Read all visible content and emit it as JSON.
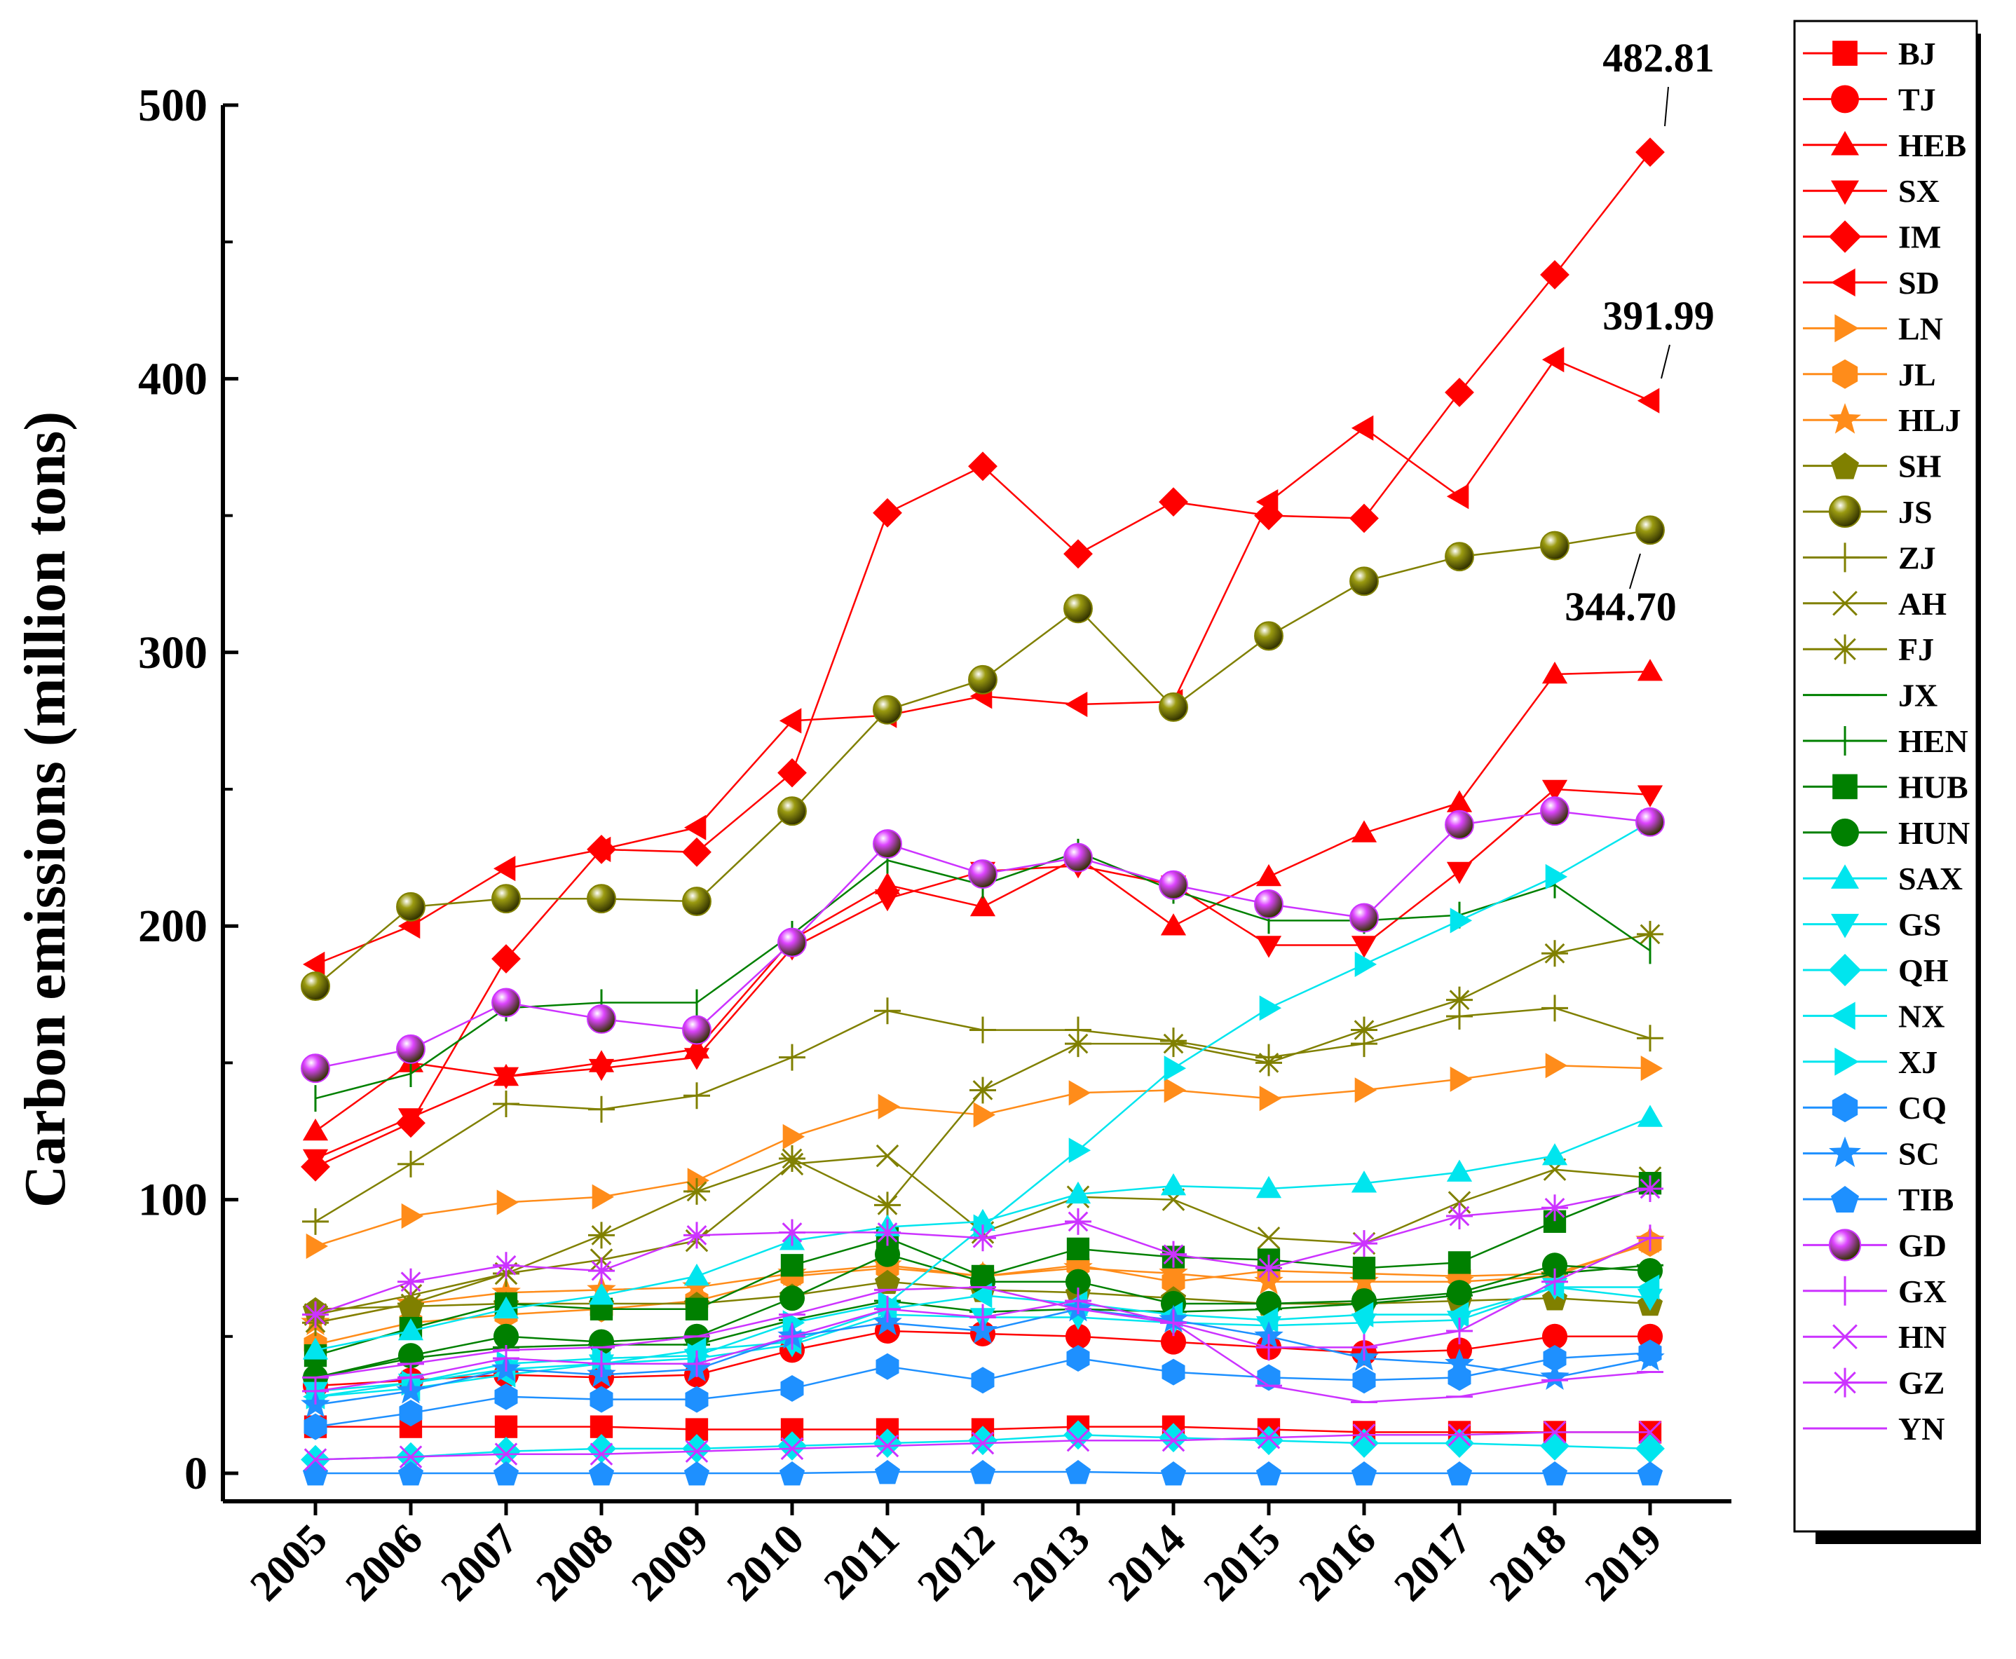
{
  "chart_data": {
    "type": "line",
    "title": "",
    "xlabel": "",
    "ylabel": "Carbon emissions (million tons)",
    "ylim": [
      0,
      500
    ],
    "yticks": [
      0,
      100,
      200,
      300,
      400,
      500
    ],
    "x": [
      "2005",
      "2006",
      "2007",
      "2008",
      "2009",
      "2010",
      "2011",
      "2012",
      "2013",
      "2014",
      "2015",
      "2016",
      "2017",
      "2018",
      "2019"
    ],
    "legend_position": "right",
    "annotations": [
      {
        "text": "482.81",
        "series": "IM",
        "x": "2019",
        "y": 482.81
      },
      {
        "text": "391.99",
        "series": "SD",
        "x": "2019",
        "y": 391.99
      },
      {
        "text": "344.70",
        "series": "JS",
        "x": "2019",
        "y": 344.7
      }
    ],
    "series": [
      {
        "name": "BJ",
        "color": "#ff0000",
        "marker": "square",
        "values": [
          17,
          17,
          17,
          17,
          16,
          16,
          16,
          16,
          17,
          17,
          16,
          15,
          15,
          15,
          15
        ]
      },
      {
        "name": "TJ",
        "color": "#ff0000",
        "marker": "circle",
        "values": [
          32,
          34,
          36,
          35,
          36,
          45,
          52,
          51,
          50,
          48,
          46,
          44,
          45,
          50,
          50
        ]
      },
      {
        "name": "HEB",
        "color": "#ff0000",
        "marker": "triangle-up",
        "values": [
          125,
          150,
          145,
          150,
          155,
          195,
          215,
          207,
          225,
          200,
          218,
          234,
          245,
          292,
          293
        ]
      },
      {
        "name": "SX",
        "color": "#ff0000",
        "marker": "triangle-down",
        "values": [
          115,
          130,
          145,
          148,
          152,
          192,
          210,
          220,
          222,
          215,
          193,
          193,
          220,
          250,
          248
        ]
      },
      {
        "name": "IM",
        "color": "#ff0000",
        "marker": "diamond",
        "values": [
          112,
          128,
          188,
          228,
          227,
          256,
          351,
          368,
          336,
          355,
          350,
          349,
          395,
          438,
          482.81
        ]
      },
      {
        "name": "SD",
        "color": "#ff0000",
        "marker": "triangle-left",
        "values": [
          186,
          200,
          221,
          228,
          236,
          275,
          277,
          284,
          281,
          282,
          355,
          382,
          357,
          407,
          391.99
        ]
      },
      {
        "name": "LN",
        "color": "#ff8c1a",
        "marker": "triangle-right",
        "values": [
          83,
          94,
          99,
          101,
          107,
          123,
          134,
          131,
          139,
          140,
          137,
          140,
          144,
          149,
          148
        ]
      },
      {
        "name": "JL",
        "color": "#ff8c1a",
        "marker": "hexagon",
        "values": [
          47,
          55,
          58,
          60,
          63,
          72,
          75,
          72,
          76,
          70,
          74,
          73,
          72,
          73,
          84
        ]
      },
      {
        "name": "HLJ",
        "color": "#ff8c1a",
        "marker": "star",
        "values": [
          55,
          62,
          66,
          67,
          68,
          73,
          76,
          72,
          75,
          73,
          70,
          70,
          70,
          72,
          85
        ]
      },
      {
        "name": "SH",
        "color": "#808000",
        "marker": "pentagon",
        "values": [
          60,
          61,
          62,
          62,
          62,
          65,
          70,
          67,
          66,
          64,
          62,
          62,
          63,
          64,
          62
        ]
      },
      {
        "name": "JS",
        "color": "#808000",
        "marker": "sphere",
        "values": [
          178,
          207,
          210,
          210,
          209,
          242,
          279,
          290,
          316,
          280,
          306,
          326,
          335,
          339,
          344.7
        ]
      },
      {
        "name": "ZJ",
        "color": "#808000",
        "marker": "plus",
        "values": [
          92,
          113,
          135,
          133,
          138,
          152,
          169,
          162,
          162,
          158,
          152,
          157,
          167,
          170,
          159
        ]
      },
      {
        "name": "AH",
        "color": "#808000",
        "marker": "x",
        "values": [
          58,
          65,
          73,
          78,
          85,
          113,
          116,
          88,
          101,
          100,
          86,
          84,
          99,
          111,
          108
        ]
      },
      {
        "name": "FJ",
        "color": "#808000",
        "marker": "asterisk",
        "values": [
          55,
          62,
          73,
          87,
          103,
          115,
          98,
          140,
          157,
          157,
          150,
          162,
          173,
          190,
          197
        ]
      },
      {
        "name": "JX",
        "color": "#008000",
        "marker": "hline",
        "values": [
          35,
          42,
          46,
          47,
          47,
          56,
          63,
          59,
          60,
          59,
          60,
          62,
          65,
          73,
          76
        ]
      },
      {
        "name": "HEN",
        "color": "#008000",
        "marker": "vline",
        "values": [
          137,
          146,
          170,
          172,
          172,
          197,
          224,
          215,
          227,
          213,
          202,
          202,
          204,
          215,
          191
        ]
      },
      {
        "name": "HUB",
        "color": "#008000",
        "marker": "square",
        "values": [
          43,
          53,
          62,
          60,
          60,
          76,
          86,
          72,
          82,
          79,
          78,
          75,
          77,
          92,
          106
        ]
      },
      {
        "name": "HUN",
        "color": "#008000",
        "marker": "circle",
        "values": [
          35,
          43,
          50,
          48,
          50,
          64,
          80,
          70,
          70,
          62,
          62,
          63,
          66,
          76,
          74
        ]
      },
      {
        "name": "SAX",
        "color": "#00e5ee",
        "marker": "triangle-up",
        "values": [
          45,
          52,
          60,
          65,
          72,
          85,
          90,
          92,
          102,
          105,
          104,
          106,
          110,
          116,
          130
        ]
      },
      {
        "name": "GS",
        "color": "#00e5ee",
        "marker": "triangle-down",
        "values": [
          30,
          33,
          38,
          40,
          42,
          47,
          58,
          57,
          57,
          55,
          54,
          55,
          56,
          68,
          64
        ]
      },
      {
        "name": "QH",
        "color": "#00e5ee",
        "marker": "diamond",
        "values": [
          5,
          6,
          8,
          9,
          9,
          10,
          11,
          12,
          14,
          13,
          12,
          11,
          11,
          10,
          9
        ]
      },
      {
        "name": "NX",
        "color": "#00e5ee",
        "marker": "triangle-left",
        "values": [
          28,
          31,
          36,
          40,
          45,
          48,
          60,
          65,
          62,
          58,
          56,
          58,
          58,
          68,
          68
        ]
      },
      {
        "name": "XJ",
        "color": "#00e5ee",
        "marker": "triangle-right",
        "values": [
          28,
          33,
          40,
          42,
          43,
          55,
          62,
          90,
          118,
          148,
          170,
          186,
          202,
          218,
          238
        ]
      },
      {
        "name": "CQ",
        "color": "#1e90ff",
        "marker": "hexagon",
        "values": [
          17,
          22,
          28,
          27,
          27,
          31,
          39,
          34,
          42,
          37,
          35,
          34,
          35,
          42,
          44
        ]
      },
      {
        "name": "SC",
        "color": "#1e90ff",
        "marker": "star",
        "values": [
          25,
          30,
          38,
          36,
          38,
          50,
          55,
          52,
          60,
          56,
          50,
          42,
          40,
          35,
          42
        ]
      },
      {
        "name": "TIB",
        "color": "#1e90ff",
        "marker": "pentagon",
        "values": [
          0,
          0,
          0,
          0,
          0,
          0,
          0.5,
          0.5,
          0.5,
          0,
          0,
          0,
          0,
          0,
          0
        ]
      },
      {
        "name": "GD",
        "color": "#cc33ff",
        "marker": "sphere",
        "values": [
          148,
          155,
          172,
          166,
          162,
          194,
          230,
          219,
          225,
          215,
          208,
          203,
          237,
          242,
          238
        ]
      },
      {
        "name": "GX",
        "color": "#cc33ff",
        "marker": "plus",
        "values": [
          30,
          35,
          42,
          40,
          40,
          50,
          60,
          57,
          63,
          55,
          46,
          46,
          52,
          70,
          86
        ]
      },
      {
        "name": "HN",
        "color": "#cc33ff",
        "marker": "x",
        "values": [
          5,
          6,
          7,
          7,
          8,
          9,
          10,
          11,
          12,
          12,
          13,
          14,
          14,
          15,
          15
        ]
      },
      {
        "name": "GZ",
        "color": "#cc33ff",
        "marker": "asterisk",
        "values": [
          58,
          70,
          76,
          74,
          87,
          88,
          88,
          86,
          92,
          80,
          75,
          84,
          94,
          97,
          104
        ]
      },
      {
        "name": "YN",
        "color": "#cc33ff",
        "marker": "hline",
        "values": [
          35,
          40,
          45,
          46,
          50,
          58,
          67,
          68,
          60,
          55,
          32,
          26,
          28,
          34,
          37
        ]
      }
    ]
  }
}
